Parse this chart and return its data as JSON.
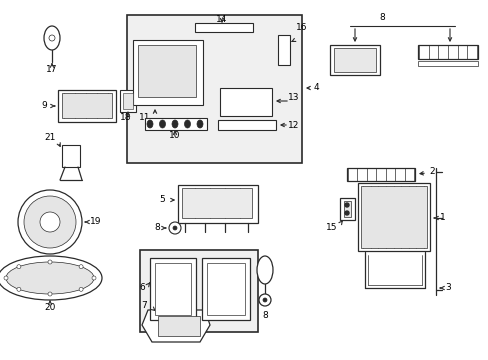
{
  "bg_color": "#ffffff",
  "lc": "#2a2a2a",
  "fig_w": 4.89,
  "fig_h": 3.6,
  "dpi": 100
}
